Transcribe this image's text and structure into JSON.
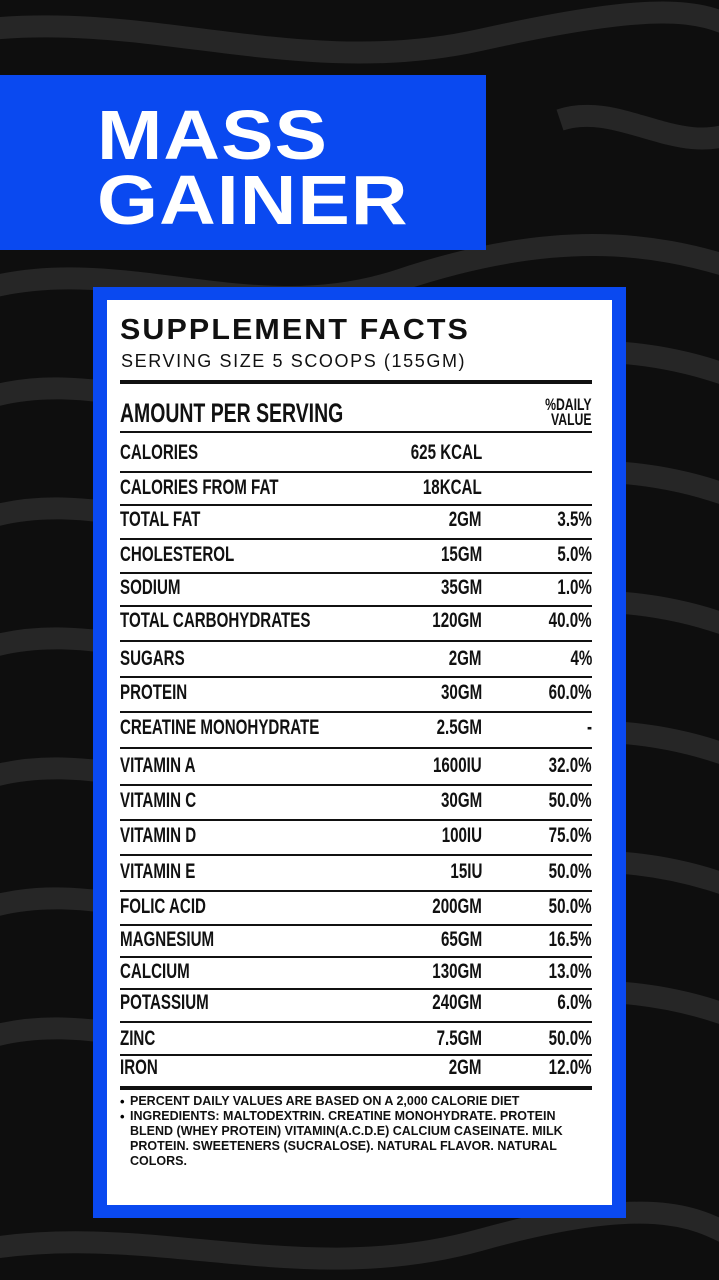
{
  "header": {
    "title_lines": [
      "MASS",
      "GAINER"
    ]
  },
  "facts": {
    "title": "SUPPLEMENT FACTS",
    "serving_size": "SERVING SIZE 5 SCOOPS (155GM)",
    "amount_header": "AMOUNT PER SERVING",
    "daily_value_header": [
      "%DAILY",
      "VALUE"
    ],
    "rows": [
      {
        "name": "CALORIES",
        "amount": "625 KCAL"
      },
      {
        "name": "CALORIES FROM FAT",
        "amount": "18KCAL"
      },
      {
        "name": "TOTAL FAT",
        "amount": "2GM",
        "daily_value": "3.5%"
      },
      {
        "name": "CHOLESTEROL",
        "amount": "15GM",
        "daily_value": "5.0%"
      },
      {
        "name": "SODIUM",
        "amount": "35GM",
        "daily_value": "1.0%"
      },
      {
        "name": "TOTAL CARBOHYDRATES",
        "amount": "120GM",
        "daily_value": "40.0%"
      },
      {
        "name": "SUGARS",
        "amount": "2GM",
        "daily_value": "4%"
      },
      {
        "name": "PROTEIN",
        "amount": "30GM",
        "daily_value": "60.0%"
      },
      {
        "name": "CREATINE MONOHYDRATE",
        "amount": "2.5GM",
        "daily_value": "-"
      },
      {
        "name": "VITAMIN A",
        "amount": "1600IU",
        "daily_value": "32.0%"
      },
      {
        "name": "VITAMIN C",
        "amount": "30GM",
        "daily_value": "50.0%"
      },
      {
        "name": "VITAMIN D",
        "amount": "100IU",
        "daily_value": "75.0%"
      },
      {
        "name": "VITAMIN E",
        "amount": "15IU",
        "daily_value": "50.0%"
      },
      {
        "name": "FOLIC ACID",
        "amount": "200GM",
        "daily_value": "50.0%"
      },
      {
        "name": "MAGNESIUM",
        "amount": "65GM",
        "daily_value": "16.5%"
      },
      {
        "name": "CALCIUM",
        "amount": "130GM",
        "daily_value": "13.0%"
      },
      {
        "name": "POTASSIUM",
        "amount": "240GM",
        "daily_value": "6.0%"
      },
      {
        "name": "ZINC",
        "amount": "7.5GM",
        "daily_value": "50.0%"
      },
      {
        "name": "IRON",
        "amount": "2GM",
        "daily_value": "12.0%"
      }
    ],
    "notes": [
      "PERCENT DAILY VALUES ARE BASED ON A 2,000 CALORIE DIET",
      "INGREDIENTS: MALTODEXTRIN. CREATINE MONOHYDRATE. PROTEIN BLEND (WHEY PROTEIN) VITAMIN(A.C.D.E) CALCIUM CASEINATE. MILK PROTEIN. SWEETENERS (SUCRALOSE). NATURAL FLAVOR. NATURAL COLORS."
    ]
  }
}
